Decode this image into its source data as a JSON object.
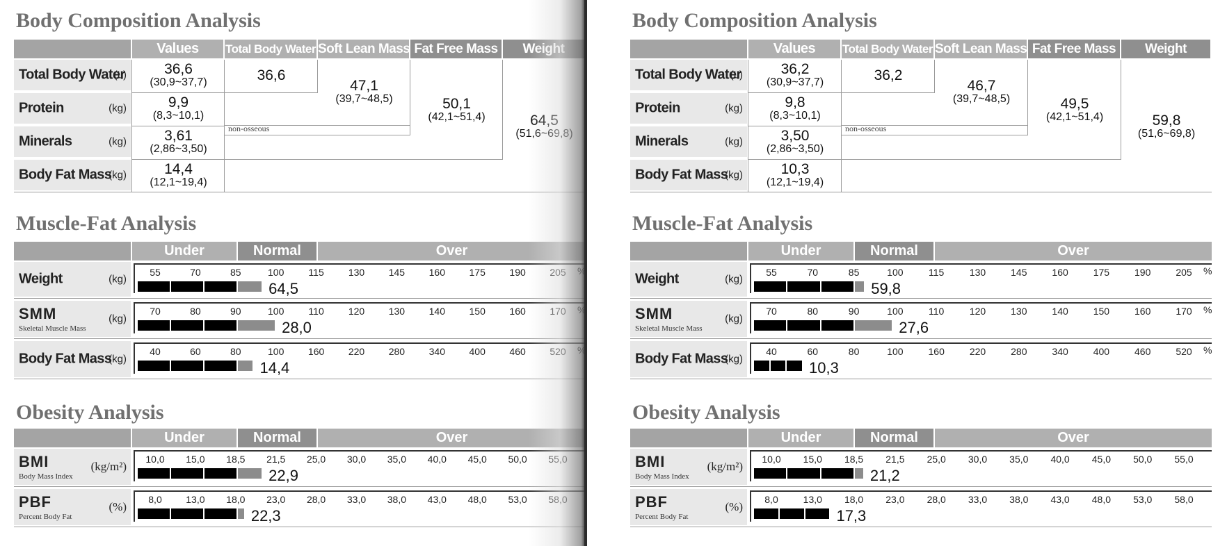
{
  "colors": {
    "header": "#b0b0b0",
    "label_bg": "#e8e8e8",
    "bar_dark": "#000000",
    "bar_gray": "#8c8c8c",
    "title": "#707070"
  },
  "titles": {
    "body_composition": "Body Composition Analysis",
    "muscle_fat": "Muscle-Fat Analysis",
    "obesity": "Obesity Analysis"
  },
  "bca_headers": {
    "values": "Values",
    "tbw": "Total Body Water",
    "slm": "Soft Lean Mass",
    "ffm": "Fat Free Mass",
    "weight": "Weight"
  },
  "bca_rows": [
    {
      "name": "Total Body Water",
      "unit": "(L)"
    },
    {
      "name": "Protein",
      "unit": "(kg)"
    },
    {
      "name": "Minerals",
      "unit": "(kg)"
    },
    {
      "name": "Body Fat Mass",
      "unit": "(kg)"
    }
  ],
  "non_osseous": "non-osseous",
  "scale_headers": {
    "under": "Under",
    "normal": "Normal",
    "over": "Over"
  },
  "mfa_labels": {
    "weight": {
      "name": "Weight",
      "unit": "(kg)"
    },
    "smm": {
      "name": "SMM",
      "sub": "Skeletal Muscle Mass",
      "unit": "(kg)"
    },
    "bfm": {
      "name": "Body Fat Mass",
      "unit": "(kg)"
    }
  },
  "obesity_labels": {
    "bmi": {
      "name": "BMI",
      "sub": "Body Mass Index",
      "unit": "(kg/m²)"
    },
    "pbf": {
      "name": "PBF",
      "sub": "Percent Body Fat",
      "unit": "(%)"
    }
  },
  "ticks": {
    "weight": [
      "55",
      "70",
      "85",
      "100",
      "115",
      "130",
      "145",
      "160",
      "175",
      "190",
      "205"
    ],
    "smm": [
      "70",
      "80",
      "90",
      "100",
      "110",
      "120",
      "130",
      "140",
      "150",
      "160",
      "170"
    ],
    "bfm": [
      "40",
      "60",
      "80",
      "100",
      "160",
      "220",
      "280",
      "340",
      "400",
      "460",
      "520"
    ],
    "bmi": [
      "10,0",
      "15,0",
      "18,5",
      "21,5",
      "25,0",
      "30,0",
      "35,0",
      "40,0",
      "45,0",
      "50,0",
      "55,0"
    ],
    "pbf": [
      "8,0",
      "13,0",
      "18,0",
      "23,0",
      "28,0",
      "33,0",
      "38,0",
      "43,0",
      "48,0",
      "53,0",
      "58,0"
    ]
  },
  "percent_sign": "%",
  "reports": [
    {
      "bca": {
        "tbw": {
          "value": "36,6",
          "range": "(30,9~37,7)"
        },
        "protein": {
          "value": "9,9",
          "range": "(8,3~10,1)"
        },
        "minerals": {
          "value": "3,61",
          "range": "(2,86~3,50)"
        },
        "bfm": {
          "value": "14,4",
          "range": "(12,1~19,4)"
        },
        "tbw_col": {
          "value": "36,6"
        },
        "slm": {
          "value": "47,1",
          "range": "(39,7~48,5)"
        },
        "ffm": {
          "value": "50,1",
          "range": "(42,1~51,4)"
        },
        "weight": {
          "value": "64,5",
          "range": "(51,6~69,8)"
        }
      },
      "bars": {
        "weight": {
          "label": "64,5",
          "fraction": 0.285
        },
        "smm": {
          "label": "28,0",
          "fraction": 0.315
        },
        "bfm": {
          "label": "14,4",
          "fraction": 0.265
        },
        "bmi": {
          "label": "22,9",
          "fraction": 0.285
        },
        "pbf": {
          "label": "22,3",
          "fraction": 0.245
        }
      }
    },
    {
      "bca": {
        "tbw": {
          "value": "36,2",
          "range": "(30,9~37,7)"
        },
        "protein": {
          "value": "9,8",
          "range": "(8,3~10,1)"
        },
        "minerals": {
          "value": "3,50",
          "range": "(2,86~3,50)"
        },
        "bfm": {
          "value": "10,3",
          "range": "(12,1~19,4)"
        },
        "tbw_col": {
          "value": "36,2"
        },
        "slm": {
          "value": "46,7",
          "range": "(39,7~48,5)"
        },
        "ffm": {
          "value": "49,5",
          "range": "(42,1~51,4)"
        },
        "weight": {
          "value": "59,8",
          "range": "(51,6~69,8)"
        }
      },
      "bars": {
        "weight": {
          "label": "59,8",
          "fraction": 0.248
        },
        "smm": {
          "label": "27,6",
          "fraction": 0.31
        },
        "bfm": {
          "label": "10,3",
          "fraction": 0.11
        },
        "bmi": {
          "label": "21,2",
          "fraction": 0.246
        },
        "pbf": {
          "label": "17,3",
          "fraction": 0.171
        }
      }
    }
  ]
}
